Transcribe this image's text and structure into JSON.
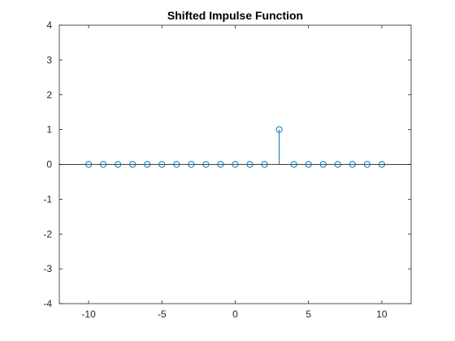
{
  "chart_data": {
    "type": "stem",
    "title": "Shifted Impulse Function",
    "xlabel": "",
    "ylabel": "",
    "xlim": [
      -12,
      12
    ],
    "ylim": [
      -4,
      4
    ],
    "x_ticks": [
      -10,
      -5,
      0,
      5,
      10
    ],
    "y_ticks": [
      -4,
      -3,
      -2,
      -1,
      0,
      1,
      2,
      3,
      4
    ],
    "grid": false,
    "baseline": 0,
    "series": [
      {
        "x": [
          -10,
          -9,
          -8,
          -7,
          -6,
          -5,
          -4,
          -3,
          -2,
          -1,
          0,
          1,
          2,
          3,
          4,
          5,
          6,
          7,
          8,
          9,
          10
        ],
        "y": [
          0,
          0,
          0,
          0,
          0,
          0,
          0,
          0,
          0,
          0,
          0,
          0,
          0,
          1,
          0,
          0,
          0,
          0,
          0,
          0,
          0
        ]
      }
    ],
    "colors": {
      "stem": "#0072BD",
      "axes": "#262626",
      "baseline": "#000000"
    }
  }
}
